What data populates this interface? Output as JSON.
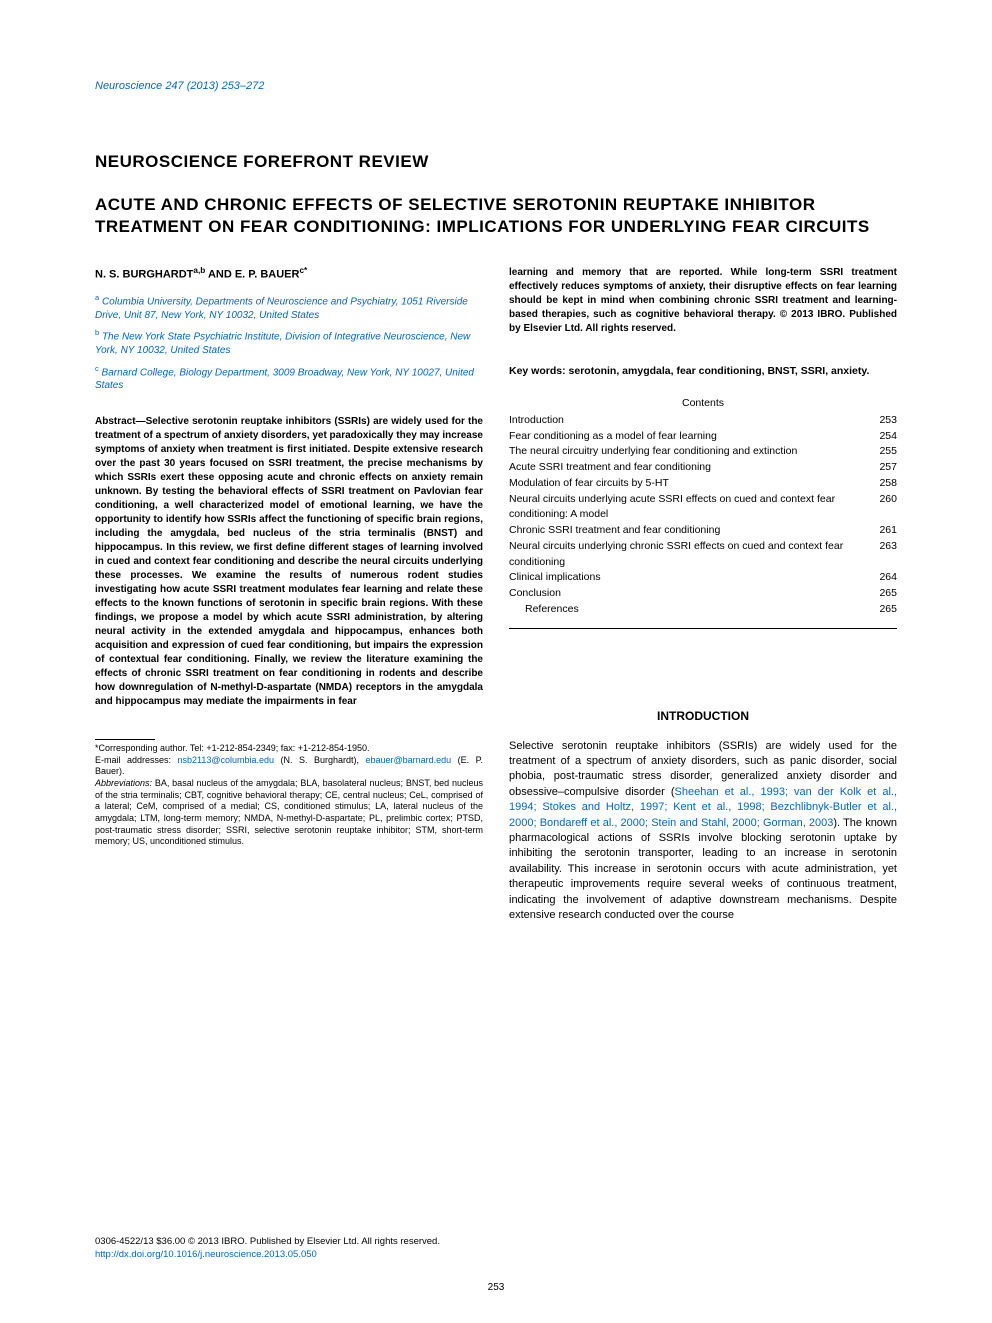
{
  "journal_ref": "Neuroscience 247 (2013) 253–272",
  "section_label": "NEUROSCIENCE FOREFRONT REVIEW",
  "title": "ACUTE AND CHRONIC EFFECTS OF SELECTIVE SEROTONIN REUPTAKE INHIBITOR TREATMENT ON FEAR CONDITIONING: IMPLICATIONS FOR UNDERLYING FEAR CIRCUITS",
  "authors_html": "N. S. BURGHARDT<sup>a,b</sup> AND E. P. BAUER<sup>c*</sup>",
  "affiliations": [
    {
      "sup": "a",
      "text": "Columbia University, Departments of Neuroscience and Psychiatry, 1051 Riverside Drive, Unit 87, New York, NY 10032, United States"
    },
    {
      "sup": "b",
      "text": "The New York State Psychiatric Institute, Division of Integrative Neuroscience, New York, NY 10032, United States"
    },
    {
      "sup": "c",
      "text": "Barnard College, Biology Department, 3009 Broadway, New York, NY 10027, United States"
    }
  ],
  "abstract_left": "Abstract—Selective serotonin reuptake inhibitors (SSRIs) are widely used for the treatment of a spectrum of anxiety disorders, yet paradoxically they may increase symptoms of anxiety when treatment is first initiated. Despite extensive research over the past 30 years focused on SSRI treatment, the precise mechanisms by which SSRIs exert these opposing acute and chronic effects on anxiety remain unknown. By testing the behavioral effects of SSRI treatment on Pavlovian fear conditioning, a well characterized model of emotional learning, we have the opportunity to identify how SSRIs affect the functioning of specific brain regions, including the amygdala, bed nucleus of the stria terminalis (BNST) and hippocampus. In this review, we first define different stages of learning involved in cued and context fear conditioning and describe the neural circuits underlying these processes. We examine the results of numerous rodent studies investigating how acute SSRI treatment modulates fear learning and relate these effects to the known functions of serotonin in specific brain regions. With these findings, we propose a model by which acute SSRI administration, by altering neural activity in the extended amygdala and hippocampus, enhances both acquisition and expression of cued fear conditioning, but impairs the expression of contextual fear conditioning. Finally, we review the literature examining the effects of chronic SSRI treatment on fear conditioning in rodents and describe how downregulation of N-methyl-D-aspartate (NMDA) receptors in the amygdala and hippocampus may mediate the impairments in fear",
  "abstract_right": "learning and memory that are reported. While long-term SSRI treatment effectively reduces symptoms of anxiety, their disruptive effects on fear learning should be kept in mind when combining chronic SSRI treatment and learning-based therapies, such as cognitive behavioral therapy. © 2013 IBRO. Published by Elsevier Ltd. All rights reserved.",
  "keywords": "Key words: serotonin, amygdala, fear conditioning, BNST, SSRI, anxiety.",
  "contents_title": "Contents",
  "toc": [
    {
      "label": "Introduction",
      "page": "253",
      "sub": false
    },
    {
      "label": "Fear conditioning as a model of fear learning",
      "page": "254",
      "sub": false
    },
    {
      "label": "The neural circuitry underlying fear conditioning and extinction",
      "page": "255",
      "sub": false,
      "wrap": true
    },
    {
      "label": "Acute SSRI treatment and fear conditioning",
      "page": "257",
      "sub": false
    },
    {
      "label": "Modulation of fear circuits by 5-HT",
      "page": "258",
      "sub": false
    },
    {
      "label": "Neural circuits underlying acute SSRI effects on cued and context fear conditioning: A model",
      "page": "260",
      "sub": false,
      "wrap": true
    },
    {
      "label": "Chronic SSRI treatment and fear conditioning",
      "page": "261",
      "sub": false
    },
    {
      "label": "Neural circuits underlying chronic SSRI effects on cued and context fear conditioning",
      "page": "263",
      "sub": false,
      "wrap": true
    },
    {
      "label": "Clinical implications",
      "page": "264",
      "sub": false
    },
    {
      "label": "Conclusion",
      "page": "265",
      "sub": false
    },
    {
      "label": "References",
      "page": "265",
      "sub": true
    }
  ],
  "intro_heading": "INTRODUCTION",
  "intro_text_before_cite": "Selective serotonin reuptake inhibitors (SSRIs) are widely used for the treatment of a spectrum of anxiety disorders, such as panic disorder, social phobia, post-traumatic stress disorder, generalized anxiety disorder and obsessive–compulsive disorder (",
  "intro_cite": "Sheehan et al., 1993; van der Kolk et al., 1994; Stokes and Holtz, 1997; Kent et al., 1998; Bezchlibnyk-Butler et al., 2000; Bondareff et al., 2000; Stein and Stahl, 2000; Gorman, 2003",
  "intro_text_after_cite": "). The known pharmacological actions of SSRIs involve blocking serotonin uptake by inhibiting the serotonin transporter, leading to an increase in serotonin availability. This increase in serotonin occurs with acute administration, yet therapeutic improvements require several weeks of continuous treatment, indicating the involvement of adaptive downstream mechanisms. Despite extensive research conducted over the course",
  "footnote_corr": "*Corresponding author. Tel: +1-212-854-2349; fax: +1-212-854-1950.",
  "footnote_email_label": "E-mail addresses: ",
  "footnote_email1": "nsb2113@columbia.edu",
  "footnote_email1_name": " (N. S. Burghardt), ",
  "footnote_email2": "ebauer@barnard.edu",
  "footnote_email2_name": " (E. P. Bauer).",
  "footnote_abbr_label": "Abbreviations:",
  "footnote_abbr": " BA, basal nucleus of the amygdala; BLA, basolateral nucleus; BNST, bed nucleus of the stria terminalis; CBT, cognitive behavioral therapy; CE, central nucleus; CeL, comprised of a lateral; CeM, comprised of a medial; CS, conditioned stimulus; LA, lateral nucleus of the amygdala; LTM, long-term memory; NMDA, N-methyl-D-aspartate; PL, prelimbic cortex; PTSD, post-traumatic stress disorder; SSRI, selective serotonin reuptake inhibitor; STM, short-term memory; US, unconditioned stimulus.",
  "footer_issn": "0306-4522/13 $36.00 © 2013 IBRO. Published by Elsevier Ltd. All rights reserved.",
  "footer_doi_label": "http://dx.doi.org/10.1016/j.neuroscience.2013.05.050",
  "page_number": "253",
  "colors": {
    "link": "#0066cc",
    "text": "#000000",
    "background": "#ffffff"
  },
  "typography": {
    "body_family": "Arial, Helvetica, sans-serif",
    "title_size_pt": 13,
    "body_size_pt": 8,
    "footnote_size_pt": 7
  }
}
